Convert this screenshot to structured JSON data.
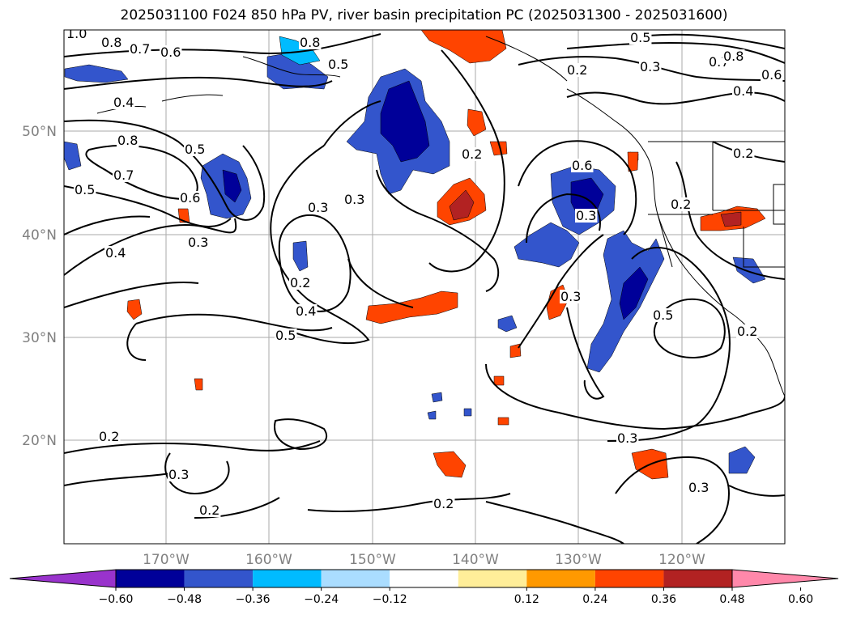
{
  "title": "2025031100 F024 850 hPa PV, river basin precipitation PC (2025031300 - 2025031600)",
  "map": {
    "lon_labels": [
      "170°W",
      "160°W",
      "150°W",
      "140°W",
      "130°W",
      "120°W"
    ],
    "lat_labels": [
      "50°N",
      "40°N",
      "30°N",
      "20°N"
    ],
    "contour_labels": [
      "1.0",
      "0.8",
      "0.7",
      "0.6",
      "0.5",
      "0.8",
      "0.5",
      "0.2",
      "0.3",
      "0.7",
      "0.8",
      "0.6",
      "0.4",
      "0.4",
      "0.8",
      "0.5",
      "0.7",
      "0.5",
      "0.6",
      "0.3",
      "0.3",
      "0.2",
      "0.6",
      "0.3",
      "0.3",
      "0.4",
      "0.5",
      "0.2",
      "0.4",
      "0.5",
      "0.2",
      "0.2",
      "0.3",
      "0.2",
      "0.3",
      "0.2",
      "0.3",
      "0.2",
      "0.3",
      "0.2"
    ]
  },
  "colorbar": {
    "tick_labels": [
      "−0.60",
      "−0.48",
      "−0.36",
      "−0.24",
      "−0.12",
      "0.12",
      "0.24",
      "0.36",
      "0.48",
      "0.60"
    ],
    "colors": [
      "#9933cc",
      "#000099",
      "#3355cc",
      "#00bbff",
      "#aaddff",
      "#ffffff",
      "#ffee99",
      "#ff9900",
      "#ff4400",
      "#b22222",
      "#ff88aa"
    ]
  }
}
